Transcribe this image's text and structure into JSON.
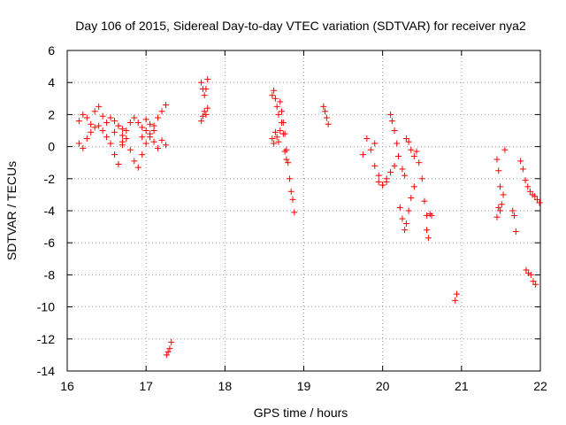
{
  "chart_data": {
    "type": "scatter",
    "title": "Day 106 of 2015, Sidereal Day-to-day VTEC variation (SDTVAR) for receiver nya2",
    "xlabel": "GPS time / hours",
    "ylabel": "SDTVAR / TECUs",
    "xlim": [
      16,
      22
    ],
    "ylim": [
      -14,
      6
    ],
    "xticks": [
      "16",
      "17",
      "18",
      "19",
      "20",
      "21",
      "22"
    ],
    "yticks": [
      "6",
      "4",
      "2",
      "0",
      "-2",
      "-4",
      "-6",
      "-8",
      "-10",
      "-12",
      "-14"
    ],
    "grid": true,
    "marker": "+",
    "color": "#ff0000",
    "series": [
      {
        "name": "SDTVAR",
        "segments": [
          {
            "x": [
              16.15,
              16.2,
              16.25,
              16.3,
              16.35,
              16.4,
              16.45,
              16.5,
              16.55,
              16.6,
              16.65,
              16.7
            ],
            "y": [
              1.6,
              2.0,
              1.8,
              1.4,
              2.2,
              2.5,
              1.9,
              1.5,
              1.8,
              1.6,
              1.3,
              1.1
            ]
          },
          {
            "x": [
              16.15,
              16.2,
              16.25,
              16.3,
              16.35,
              16.4,
              16.45,
              16.5,
              16.55,
              16.6,
              16.65,
              16.7
            ],
            "y": [
              0.2,
              -0.1,
              0.5,
              0.9,
              1.2,
              1.3,
              1.0,
              0.6,
              0.2,
              -0.5,
              -1.1,
              0.3
            ]
          },
          {
            "x": [
              16.6,
              16.65,
              16.7,
              16.75,
              16.8,
              16.85,
              16.9,
              16.95,
              17.0,
              17.05,
              17.1
            ],
            "y": [
              0.9,
              1.3,
              0.7,
              1.0,
              1.5,
              1.8,
              1.5,
              1.2,
              1.7,
              1.4,
              1.0
            ]
          },
          {
            "x": [
              16.7,
              16.75,
              16.8,
              16.85,
              16.9,
              16.95,
              17.0,
              17.05,
              17.1,
              17.15,
              17.2,
              17.25
            ],
            "y": [
              0.1,
              0.5,
              -0.2,
              -0.9,
              -1.3,
              -0.5,
              0.2,
              0.6,
              0.3,
              -0.1,
              0.4,
              0.1
            ]
          },
          {
            "x": [
              16.95,
              17.0,
              17.05,
              17.1,
              17.15,
              17.2,
              17.25
            ],
            "y": [
              0.6,
              1.0,
              0.8,
              1.3,
              1.8,
              2.2,
              2.6
            ]
          },
          {
            "x": [
              17.26,
              17.28,
              17.3,
              17.32
            ],
            "y": [
              -13.0,
              -12.8,
              -12.6,
              -12.2
            ]
          },
          {
            "x": [
              17.7,
              17.72,
              17.74,
              17.76,
              17.78
            ],
            "y": [
              4.0,
              3.6,
              3.2,
              3.6,
              4.2
            ]
          },
          {
            "x": [
              17.7,
              17.72,
              17.74,
              17.76,
              17.78
            ],
            "y": [
              1.6,
              1.9,
              2.2,
              2.0,
              2.4
            ]
          },
          {
            "x": [
              18.6,
              18.62,
              18.64,
              18.66,
              18.68,
              18.7,
              18.72,
              18.74,
              18.76,
              18.78,
              18.8,
              18.82,
              18.84,
              18.86,
              18.88
            ],
            "y": [
              3.2,
              3.5,
              3.0,
              2.5,
              2.0,
              2.8,
              2.2,
              1.5,
              0.8,
              -0.2,
              -1.0,
              -2.0,
              -2.8,
              -3.3,
              -4.1
            ]
          },
          {
            "x": [
              18.6,
              18.62,
              18.64,
              18.66,
              18.68,
              18.7,
              18.72,
              18.74,
              18.76,
              18.78
            ],
            "y": [
              0.5,
              0.2,
              0.9,
              0.6,
              0.3,
              1.0,
              1.5,
              0.8,
              -0.3,
              -0.8
            ]
          },
          {
            "x": [
              19.25,
              19.27,
              19.29,
              19.31
            ],
            "y": [
              2.5,
              2.2,
              1.8,
              1.4
            ]
          },
          {
            "x": [
              19.75,
              19.8,
              19.85,
              19.9,
              19.95,
              20.0,
              20.05,
              20.1,
              20.15
            ],
            "y": [
              -0.5,
              0.5,
              -0.2,
              0.2,
              -2.2,
              -2.4,
              -2.0,
              -1.6,
              -1.2
            ]
          },
          {
            "x": [
              19.9,
              19.95,
              20.0,
              20.05,
              20.1,
              20.12,
              20.15,
              20.18,
              20.2,
              20.25,
              20.28
            ],
            "y": [
              -1.2,
              -1.8,
              -2.4,
              -2.2,
              2.0,
              1.6,
              1.0,
              0.2,
              -0.6,
              -1.4,
              -1.8
            ]
          },
          {
            "x": [
              20.22,
              20.25,
              20.28,
              20.3,
              20.33,
              20.36,
              20.4
            ],
            "y": [
              -3.8,
              -4.5,
              -5.2,
              -4.8,
              -4.0,
              -3.2,
              -2.5
            ]
          },
          {
            "x": [
              20.3,
              20.33,
              20.36,
              20.4,
              20.43,
              20.46,
              20.5,
              20.53,
              20.56
            ],
            "y": [
              0.5,
              0.3,
              -0.2,
              -0.6,
              -0.3,
              -1.0,
              -2.0,
              -3.4,
              -4.3
            ]
          },
          {
            "x": [
              20.56,
              20.58,
              20.6,
              20.62
            ],
            "y": [
              -5.2,
              -5.7,
              -4.2,
              -4.3
            ]
          },
          {
            "x": [
              20.92,
              20.94
            ],
            "y": [
              -9.6,
              -9.2
            ]
          },
          {
            "x": [
              21.45,
              21.47,
              21.49,
              21.51,
              21.53,
              21.55
            ],
            "y": [
              -0.8,
              -1.5,
              -2.5,
              -3.6,
              -3.0,
              -0.2
            ]
          },
          {
            "x": [
              21.45,
              21.47,
              21.49
            ],
            "y": [
              -4.4,
              -3.8,
              -4.0
            ]
          },
          {
            "x": [
              21.65,
              21.67,
              21.69
            ],
            "y": [
              -4.0,
              -4.3,
              -5.3
            ]
          },
          {
            "x": [
              21.75,
              21.78,
              21.81,
              21.84,
              21.87,
              21.9,
              21.93,
              21.96,
              21.99
            ],
            "y": [
              -0.9,
              -1.4,
              -2.1,
              -2.5,
              -2.8,
              -3.0,
              -3.1,
              -3.3,
              -3.5
            ]
          },
          {
            "x": [
              21.82,
              21.85,
              21.88,
              21.91,
              21.94
            ],
            "y": [
              -7.7,
              -7.9,
              -8.0,
              -8.4,
              -8.6
            ]
          }
        ]
      }
    ]
  }
}
